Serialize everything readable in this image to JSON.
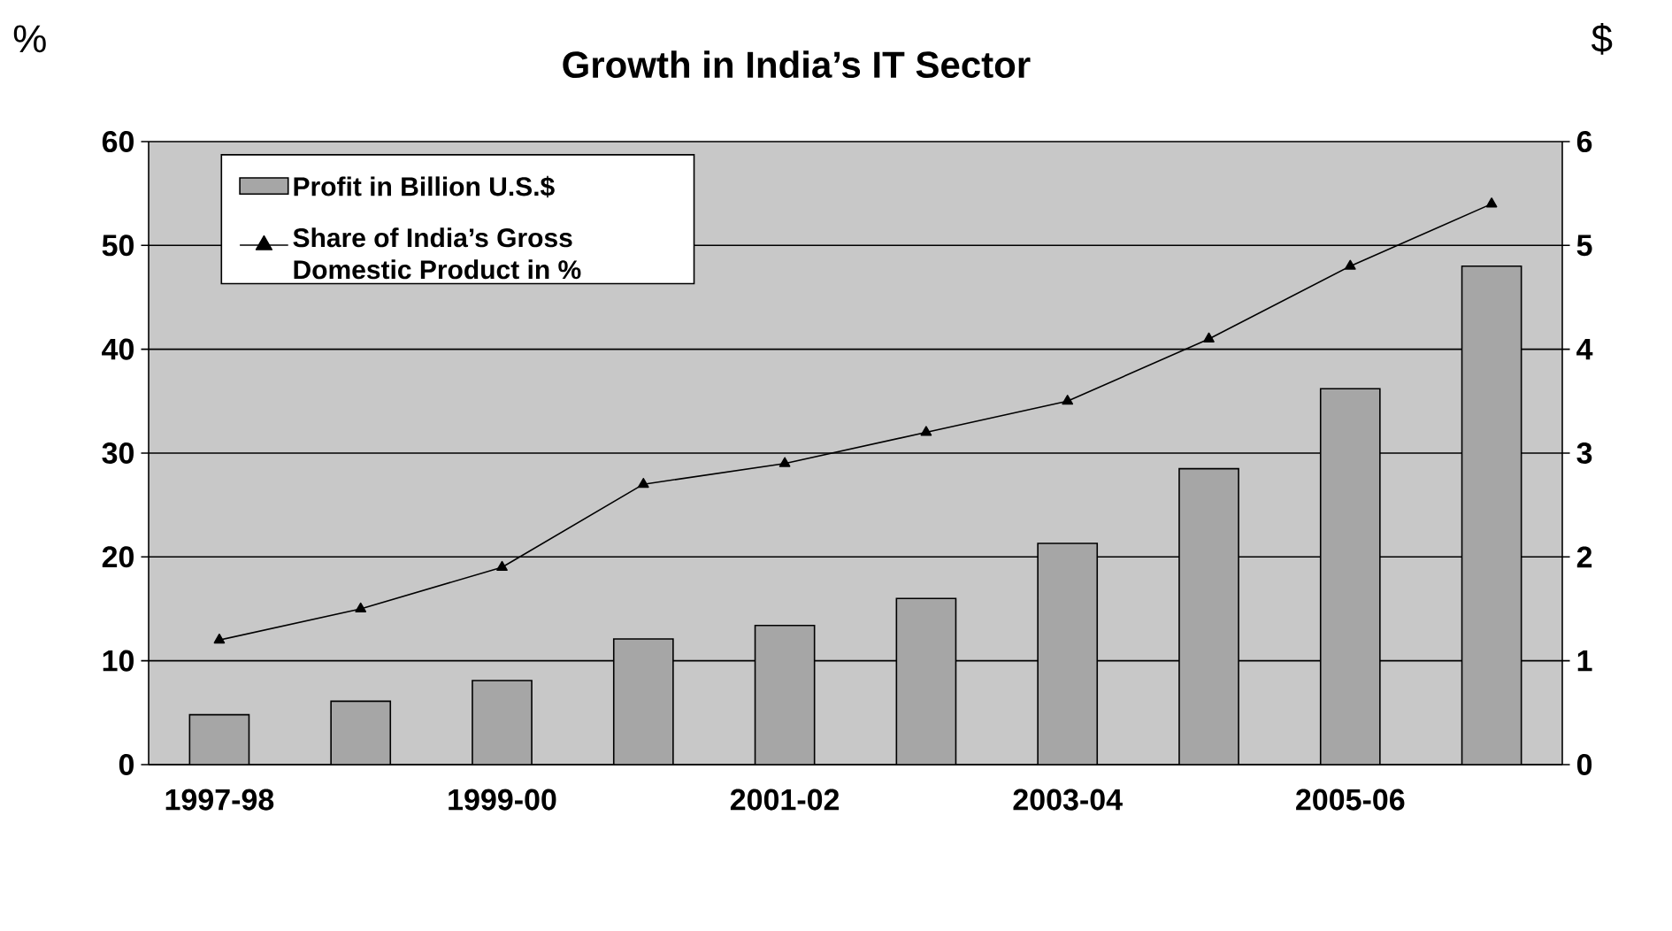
{
  "chart_data": {
    "type": "bar",
    "title": "Growth in India’s IT Sector",
    "ylabel": "%",
    "y2label": "$",
    "categories": [
      "1997-98",
      null,
      "1999-00",
      null,
      "2001-02",
      null,
      "2003-04",
      null,
      "2005-06",
      null
    ],
    "series": [
      {
        "name": "Profit in Billion U.S.$",
        "color": "#a6a6a6",
        "values": [
          4.8,
          6.1,
          8.1,
          12.1,
          13.4,
          16.0,
          21.3,
          28.5,
          36.2,
          48.0
        ]
      },
      {
        "name": "Share of India’s Gross Domestic Product in %",
        "type": "line",
        "axis": "y2",
        "color": "#000000",
        "values": [
          1.2,
          1.5,
          1.9,
          2.7,
          2.9,
          3.2,
          3.5,
          4.1,
          4.8,
          5.4
        ]
      }
    ],
    "ylim": [
      0,
      60
    ],
    "yticks": [
      0,
      10,
      20,
      30,
      40,
      50,
      60
    ],
    "y2lim": [
      0,
      6
    ],
    "y2ticks": [
      0,
      1,
      2,
      3,
      4,
      5,
      6
    ],
    "grid": "y",
    "legend": "top left",
    "marker": "triangle"
  }
}
